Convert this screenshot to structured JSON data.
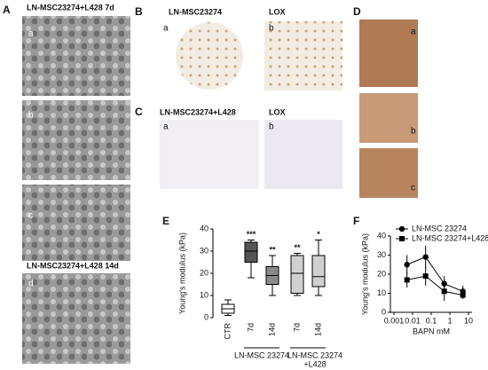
{
  "panel_letters": [
    "A",
    "B",
    "C",
    "D",
    "E",
    "F"
  ],
  "panel_a": {
    "title_7d": "LN-MSC23274+L428 7d",
    "title_14d": "LN-MSC23274+L428 14d",
    "sublabels": [
      "a",
      "b",
      "c",
      "d"
    ]
  },
  "panel_b": {
    "titles": [
      "LN-MSC23274",
      "LOX"
    ],
    "sublabels": [
      "a",
      "b"
    ]
  },
  "panel_c": {
    "titles": [
      "LN-MSC23274+L428",
      "LOX"
    ],
    "sublabels": [
      "a",
      "b"
    ]
  },
  "panel_d": {
    "sublabels": [
      "a",
      "b",
      "c"
    ]
  },
  "chart_data": [
    {
      "type": "box",
      "ylabel": "Young's modulus (kPa)",
      "categories": [
        "CTR",
        "7d",
        "14d",
        "7d",
        "14d"
      ],
      "boxes": [
        {
          "min": 1,
          "q1": 2,
          "median": 4,
          "q3": 6,
          "max": 8
        },
        {
          "min": 18,
          "q1": 25,
          "median": 30,
          "q3": 34,
          "max": 35
        },
        {
          "min": 10,
          "q1": 15,
          "median": 19,
          "q3": 23,
          "max": 28
        },
        {
          "min": 10,
          "q1": 11,
          "median": 20,
          "q3": 28,
          "max": 29
        },
        {
          "min": 10,
          "q1": 14,
          "median": 18.5,
          "q3": 28,
          "max": 35
        }
      ],
      "colors": [
        "#ffffff",
        "#555555",
        "#8a8a8a",
        "#d0d0d0",
        "#d0d0d0"
      ],
      "significance": [
        null,
        "***",
        "**",
        "**",
        "*"
      ],
      "group_labels": [
        [
          "LN-MSC 23274"
        ],
        [
          "LN-MSC 23274",
          "+L428"
        ]
      ],
      "ylim": [
        0,
        40
      ],
      "yticks": [
        0,
        10,
        20,
        30,
        40
      ]
    },
    {
      "type": "line",
      "xlabel": "BAPN mM",
      "ylabel": "Young's modulus (kPa)",
      "xscale": "log",
      "xlim": [
        0.001,
        10
      ],
      "xticks": [
        0.001,
        0.01,
        0.1,
        1,
        10
      ],
      "ylim": [
        0,
        40
      ],
      "yticks": [
        0,
        10,
        20,
        30,
        40
      ],
      "legend": "upper right",
      "series": [
        {
          "name": "LN-MSC 23274",
          "marker": "circle",
          "color": "#000000",
          "x": [
            0.005,
            0.05,
            0.5,
            5
          ],
          "values": [
            25,
            29,
            15,
            11
          ],
          "errors": [
            5,
            6,
            4,
            3
          ]
        },
        {
          "name": "LN-MSC 23274+L428",
          "marker": "square",
          "color": "#000000",
          "x": [
            0.005,
            0.05,
            0.5,
            5
          ],
          "values": [
            17,
            19,
            11,
            9
          ],
          "errors": [
            4,
            5,
            5,
            2
          ]
        }
      ]
    }
  ]
}
